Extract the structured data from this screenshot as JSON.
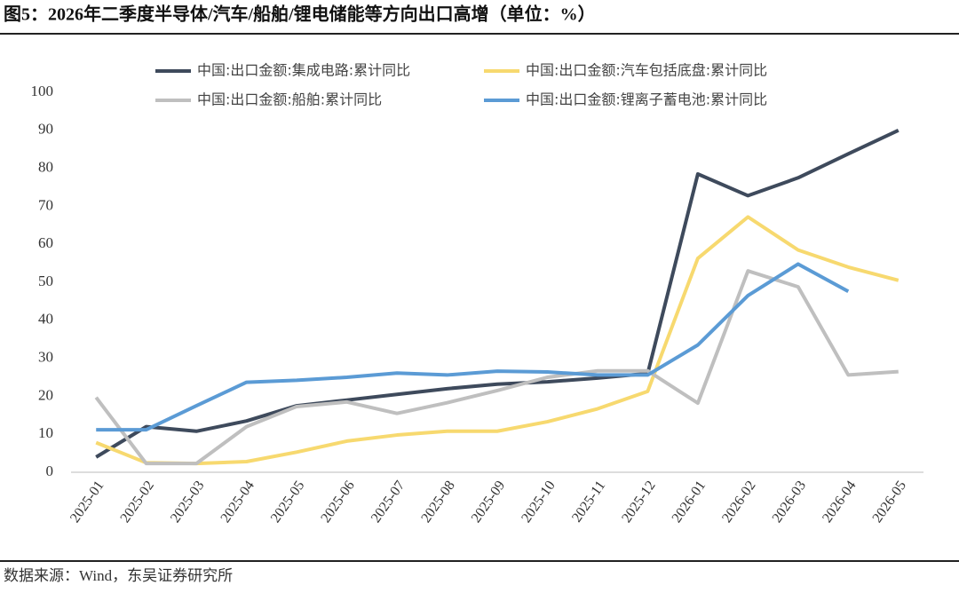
{
  "chart_data": {
    "type": "line",
    "title": "图5：2026年二季度半导体/汽车/船舶/锂电储能等方向出口高增（单位：%）",
    "source": "数据来源：Wind，东吴证券研究所",
    "categories": [
      "2025-01",
      "2025-02",
      "2025-03",
      "2025-04",
      "2025-05",
      "2025-06",
      "2025-07",
      "2025-08",
      "2025-09",
      "2025-10",
      "2025-11",
      "2025-12",
      "2026-01",
      "2026-02",
      "2026-03",
      "2026-04",
      "2026-05"
    ],
    "series": [
      {
        "name": "中国:出口金额:集成电路:累计同比",
        "color": "#3e4a5c",
        "values": [
          4,
          12,
          10.8,
          13.5,
          17.5,
          19,
          20.5,
          22,
          23.2,
          23.8,
          24.8,
          26,
          78.5,
          72.8,
          77.5,
          83.8,
          90
        ]
      },
      {
        "name": "中国:出口金额:汽车包括底盘:累计同比",
        "color": "#f7d96f",
        "values": [
          7.8,
          2.5,
          2.3,
          2.8,
          5.3,
          8.2,
          9.8,
          10.8,
          10.8,
          13.3,
          16.7,
          21.3,
          56.3,
          67.2,
          58.5,
          54,
          50.5
        ]
      },
      {
        "name": "中国:出口金额:船舶:累计同比",
        "color": "#bfbfbf",
        "values": [
          19.7,
          2.3,
          2.3,
          12,
          17.3,
          18.5,
          15.5,
          18.3,
          21.5,
          25,
          26.7,
          26.7,
          18.2,
          53,
          48.8,
          25.6,
          26.5
        ]
      },
      {
        "name": "中国:出口金额:锂离子蓄电池:累计同比",
        "color": "#5b9bd5",
        "values": [
          11.2,
          11.2,
          17.5,
          23.7,
          24.2,
          25,
          26.1,
          25.6,
          26.6,
          26.4,
          25.6,
          25.6,
          33.5,
          46.5,
          54.8,
          47.6,
          null
        ]
      }
    ],
    "ylim": [
      0,
      100
    ],
    "yticks": [
      0,
      10,
      20,
      30,
      40,
      50,
      60,
      70,
      80,
      90,
      100
    ],
    "grid": false,
    "legend": "top"
  }
}
